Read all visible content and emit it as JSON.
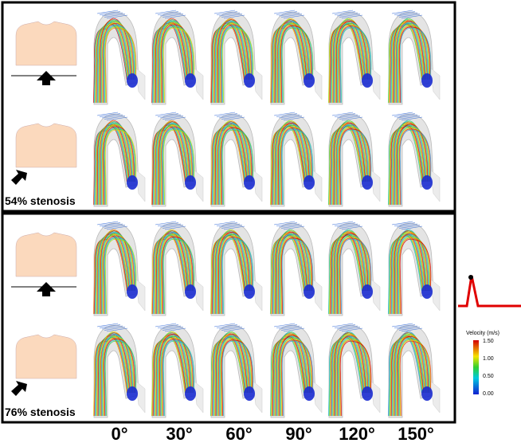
{
  "panels": [
    {
      "label": "54% stenosis"
    },
    {
      "label": "76% stenosis"
    }
  ],
  "angles": [
    "0°",
    "30°",
    "60°",
    "90°",
    "120°",
    "150°"
  ],
  "colorbar": {
    "title": "Velocity (m/s)",
    "ticks": [
      "1.50",
      "1.00",
      "0.50",
      "0.00"
    ]
  }
}
